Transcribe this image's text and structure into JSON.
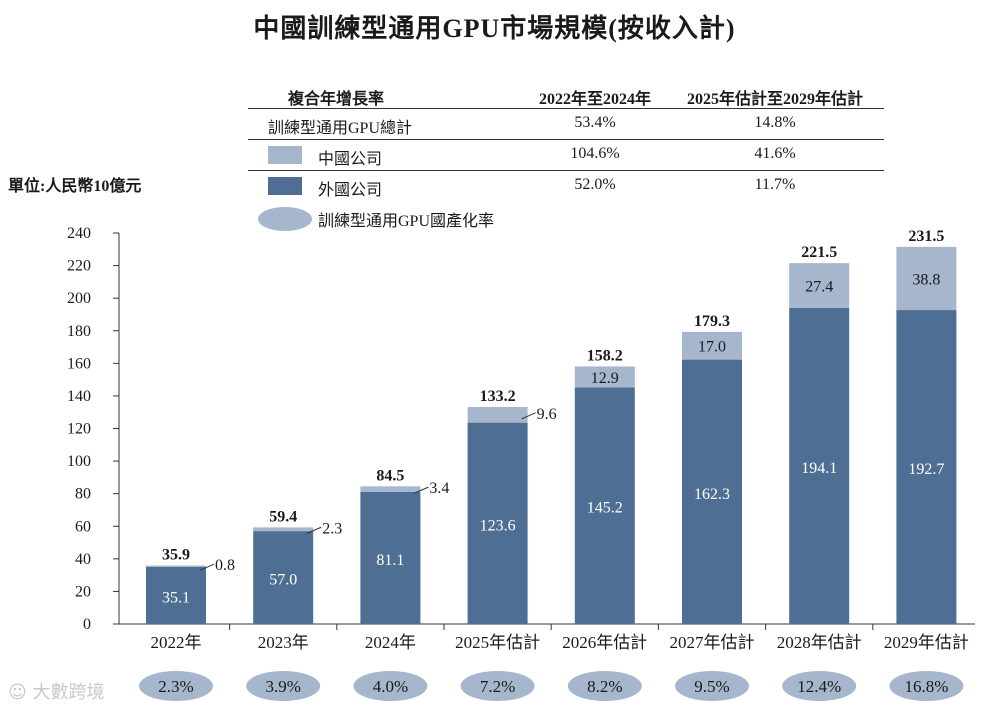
{
  "title": "中國訓練型通用GPU市場規模(按收入計)",
  "unit_label": "單位:人民幣10億元",
  "cagr_table": {
    "header": [
      "複合年增長率",
      "2022年至2024年",
      "2025年估計至2029年估計"
    ],
    "rows": [
      {
        "label": "訓練型通用GPU總計",
        "v1": "53.4%",
        "v2": "14.8%"
      },
      {
        "label": "中國公司",
        "v1": "104.6%",
        "v2": "41.6%"
      },
      {
        "label": "外國公司",
        "v1": "52.0%",
        "v2": "11.7%"
      }
    ]
  },
  "legend": {
    "domestic": "中國公司",
    "foreign": "外國公司",
    "localization": "訓練型通用GPU國產化率"
  },
  "colors": {
    "domestic": "#a5b6cd",
    "foreign": "#4e6f93",
    "ellipse": "#a5b6cd",
    "axis": "#333333"
  },
  "watermark": "大數跨境",
  "chart_data": {
    "type": "bar",
    "stacked": true,
    "title": "中國訓練型通用GPU市場規模(按收入計)",
    "ylabel": "單位:人民幣10億元",
    "ylim": [
      0,
      240
    ],
    "yticks": [
      0,
      20,
      40,
      60,
      80,
      100,
      120,
      140,
      160,
      180,
      200,
      220,
      240
    ],
    "categories": [
      "2022年",
      "2023年",
      "2024年",
      "2025年估計",
      "2026年估計",
      "2027年估計",
      "2028年估計",
      "2029年估計"
    ],
    "series": [
      {
        "name": "外國公司",
        "values": [
          35.1,
          57.0,
          81.1,
          123.6,
          145.2,
          162.3,
          194.1,
          192.7
        ],
        "labels": [
          "35.1",
          "57.0",
          "81.1",
          "123.6",
          "145.2",
          "162.3",
          "194.1",
          "192.7"
        ]
      },
      {
        "name": "中國公司",
        "values": [
          0.8,
          2.3,
          3.4,
          9.6,
          12.9,
          17.0,
          27.4,
          38.8
        ],
        "labels": [
          "0.8",
          "2.3",
          "3.4",
          "9.6",
          "12.9",
          "17.0",
          "27.4",
          "38.8"
        ]
      }
    ],
    "totals": [
      "35.9",
      "59.4",
      "84.5",
      "133.2",
      "158.2",
      "179.3",
      "221.5",
      "231.5"
    ],
    "localization_rate": [
      "2.3%",
      "3.9%",
      "4.0%",
      "7.2%",
      "8.2%",
      "9.5%",
      "12.4%",
      "16.8%"
    ]
  }
}
